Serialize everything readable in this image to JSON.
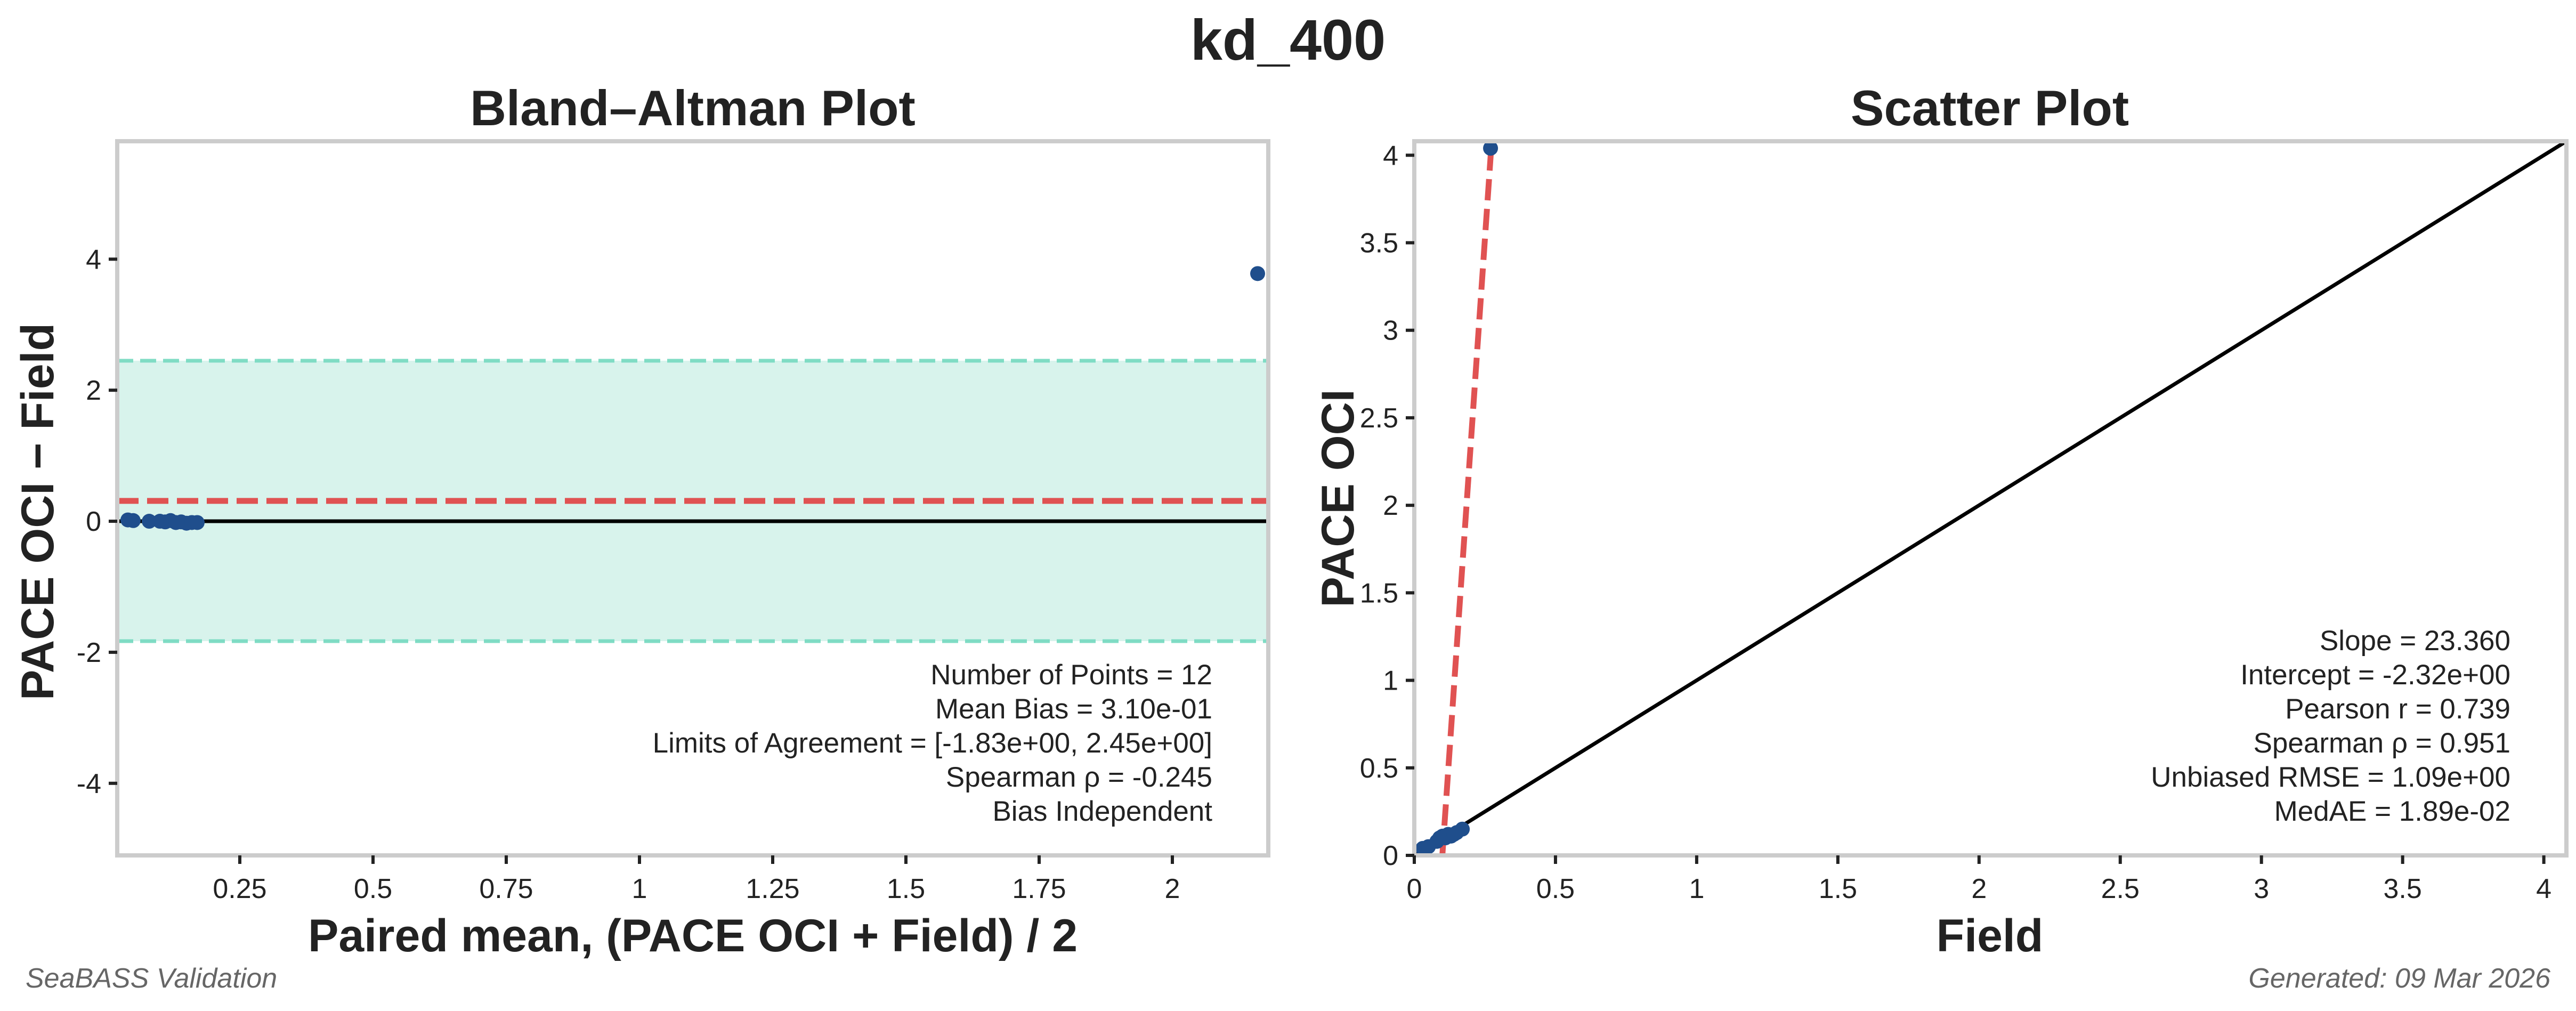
{
  "figure": {
    "title": "kd_400",
    "footer_left": "SeaBASS Validation",
    "footer_right": "Generated: 09 Mar 2026"
  },
  "colors": {
    "points": "#1f4e8c",
    "bias_line": "#e05252",
    "loa_line": "#7fdcc4",
    "loa_fill": "#d8f3ec",
    "identity_line": "#000000",
    "frame": "#cccccc"
  },
  "chart_data": [
    {
      "type": "scatter",
      "subtype": "bland-altman",
      "title": "Bland–Altman Plot",
      "xlabel": "Paired mean, (PACE OCI + Field) / 2",
      "ylabel": "PACE OCI − Field",
      "xlim": [
        0.02,
        2.18
      ],
      "ylim": [
        -5.1,
        5.8
      ],
      "x_ticks": [
        0.25,
        0.5,
        0.75,
        1,
        1.25,
        1.5,
        1.75,
        2
      ],
      "x_tick_labels": [
        "0.25",
        "0.5",
        "0.75",
        "1",
        "1.25",
        "1.5",
        "1.75",
        "2"
      ],
      "y_ticks": [
        -4,
        -2,
        0,
        2,
        4
      ],
      "y_tick_labels": [
        "-4",
        "-2",
        "0",
        "2",
        "4"
      ],
      "points": [
        {
          "x": 0.04,
          "y": 0.02
        },
        {
          "x": 0.05,
          "y": 0.01
        },
        {
          "x": 0.08,
          "y": 0.0
        },
        {
          "x": 0.1,
          "y": 0.0
        },
        {
          "x": 0.11,
          "y": -0.01
        },
        {
          "x": 0.12,
          "y": 0.01
        },
        {
          "x": 0.13,
          "y": -0.02
        },
        {
          "x": 0.14,
          "y": -0.01
        },
        {
          "x": 0.15,
          "y": -0.03
        },
        {
          "x": 0.16,
          "y": -0.02
        },
        {
          "x": 0.17,
          "y": -0.02
        },
        {
          "x": 2.16,
          "y": 3.78
        }
      ],
      "mean_bias": 0.31,
      "loa": [
        -1.83,
        2.45
      ],
      "zero_line": 0,
      "stats": [
        "Number of Points = 12",
        "Mean Bias = 3.10e-01",
        "Limits of Agreement = [-1.83e+00, 2.45e+00]",
        "Spearman ρ = -0.245",
        "Bias Independent"
      ],
      "stats_position": "bottom-right",
      "grid": false
    },
    {
      "type": "scatter",
      "title": "Scatter Plot",
      "xlabel": "Field",
      "ylabel": "PACE OCI",
      "xlim": [
        0,
        4.08
      ],
      "ylim": [
        0,
        4.08
      ],
      "x_ticks": [
        0,
        0.5,
        1,
        1.5,
        2,
        2.5,
        3,
        3.5,
        4
      ],
      "x_tick_labels": [
        "0",
        "0.5",
        "1",
        "1.5",
        "2",
        "2.5",
        "3",
        "3.5",
        "4"
      ],
      "y_ticks": [
        0,
        0.5,
        1,
        1.5,
        2,
        2.5,
        3,
        3.5,
        4
      ],
      "y_tick_labels": [
        "0",
        "0.5",
        "1",
        "1.5",
        "2",
        "2.5",
        "3",
        "3.5",
        "4"
      ],
      "points": [
        {
          "x": 0.03,
          "y": 0.04
        },
        {
          "x": 0.05,
          "y": 0.05
        },
        {
          "x": 0.08,
          "y": 0.08
        },
        {
          "x": 0.09,
          "y": 0.1
        },
        {
          "x": 0.1,
          "y": 0.11
        },
        {
          "x": 0.11,
          "y": 0.1
        },
        {
          "x": 0.12,
          "y": 0.12
        },
        {
          "x": 0.13,
          "y": 0.11
        },
        {
          "x": 0.14,
          "y": 0.12
        },
        {
          "x": 0.15,
          "y": 0.13
        },
        {
          "x": 0.17,
          "y": 0.15
        },
        {
          "x": 0.27,
          "y": 4.04
        }
      ],
      "fit": {
        "slope": 23.36,
        "intercept": -2.32
      },
      "identity_line": true,
      "stats": [
        "Slope = 23.360",
        "Intercept = -2.32e+00",
        "Pearson r = 0.739",
        "Spearman ρ = 0.951",
        "Unbiased RMSE = 1.09e+00",
        "MedAE = 1.89e-02"
      ],
      "stats_position": "bottom-right",
      "grid": false
    }
  ]
}
